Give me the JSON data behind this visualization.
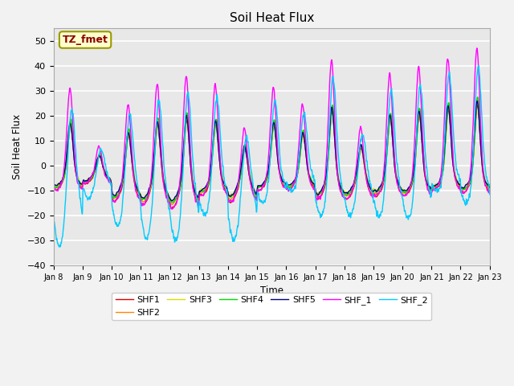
{
  "title": "Soil Heat Flux",
  "xlabel": "Time",
  "ylabel": "Soil Heat Flux",
  "ylim": [
    -40,
    55
  ],
  "yticks": [
    -40,
    -30,
    -20,
    -10,
    0,
    10,
    20,
    30,
    40,
    50
  ],
  "x_tick_labels": [
    "Jan 8",
    "Jan 9",
    "Jan 10",
    "Jan 11",
    "Jan 12",
    "Jan 13",
    "Jan 14",
    "Jan 15",
    "Jan 16",
    "Jan 17",
    "Jan 18",
    "Jan 19",
    "Jan 20",
    "Jan 21",
    "Jan 22",
    "Jan 23"
  ],
  "series_colors": {
    "SHF1": "#dd0000",
    "SHF2": "#ff8800",
    "SHF3": "#dddd00",
    "SHF4": "#00dd00",
    "SHF5": "#000088",
    "SHF_1": "#ff00ff",
    "SHF_2": "#00ccff"
  },
  "series_order": [
    "SHF1",
    "SHF2",
    "SHF3",
    "SHF4",
    "SHF5",
    "SHF_1",
    "SHF_2"
  ],
  "annotation_text": "TZ_fmet",
  "annotation_color": "#8b0000",
  "annotation_bg": "#ffffcc",
  "annotation_edge": "#999900",
  "plot_bg_color": "#e8e8e8",
  "fig_bg_color": "#f2f2f2",
  "grid_color": "#ffffff",
  "linewidth": 1.0,
  "day_peaks": [
    34,
    10,
    29,
    37,
    41,
    36,
    19,
    34,
    27,
    46,
    19,
    40,
    43,
    46,
    50
  ],
  "day_troughs_cyan": [
    -32,
    -13,
    -24,
    -29,
    -30,
    -20,
    -30,
    -15,
    -10,
    -20,
    -20,
    -20,
    -21,
    -10,
    -15
  ],
  "day_troughs_other": [
    -8,
    -6,
    -12,
    -13,
    -14,
    -10,
    -12,
    -8,
    -8,
    -11,
    -11,
    -10,
    -10,
    -8,
    -9
  ]
}
